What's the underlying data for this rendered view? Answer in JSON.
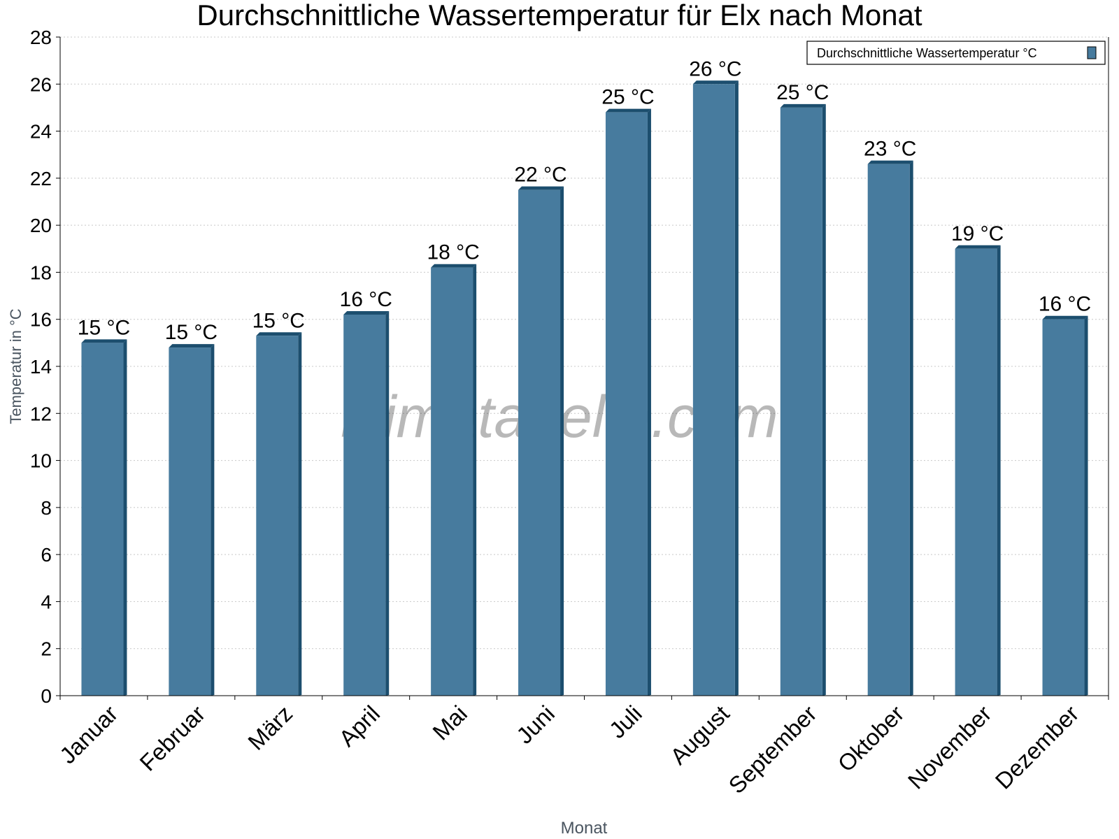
{
  "chart_data": {
    "type": "bar",
    "title": "Durchschnittliche Wassertemperatur für Elx nach Monat",
    "xlabel": "Monat",
    "ylabel": "Temperatur in °C",
    "ylim": [
      0,
      28
    ],
    "yticks": [
      0,
      2,
      4,
      6,
      8,
      10,
      12,
      14,
      16,
      18,
      20,
      22,
      24,
      26,
      28
    ],
    "grid": true,
    "legend_position": "top-right",
    "categories": [
      "Januar",
      "Februar",
      "März",
      "April",
      "Mai",
      "Juni",
      "Juli",
      "August",
      "September",
      "Oktober",
      "November",
      "Dezember"
    ],
    "series": [
      {
        "name": "Durchschnittliche Wassertemperatur °C",
        "values": [
          15.0,
          14.8,
          15.3,
          16.2,
          18.2,
          21.5,
          24.8,
          26.0,
          25.0,
          22.6,
          19.0,
          16.0
        ],
        "data_labels": [
          "15 °C",
          "15 °C",
          "15 °C",
          "16 °C",
          "18 °C",
          "22 °C",
          "25 °C",
          "26 °C",
          "25 °C",
          "23 °C",
          "19 °C",
          "16 °C"
        ],
        "color": "#477b9e",
        "edge_color": "#1c4e6e"
      }
    ],
    "watermark": "klimatabelle.com"
  }
}
